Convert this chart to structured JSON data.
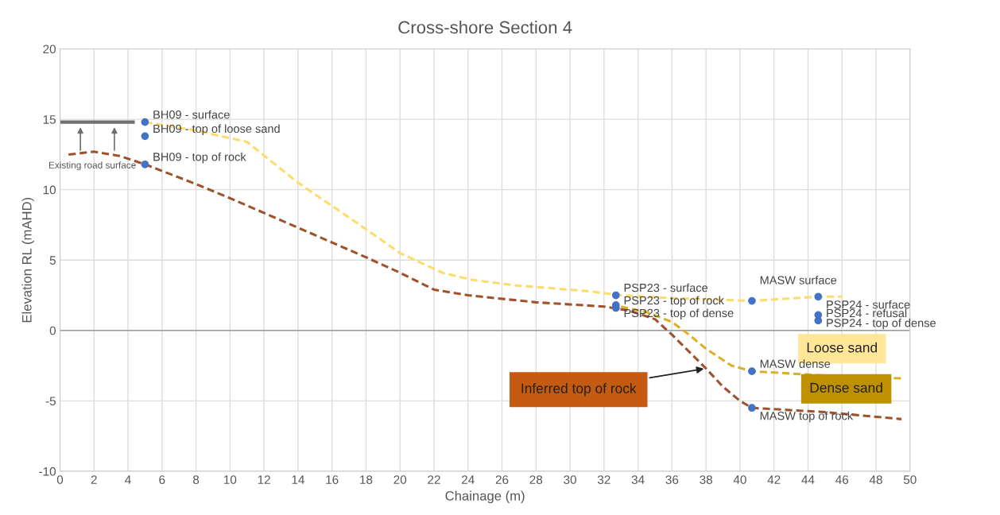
{
  "chart_data": {
    "type": "scatter",
    "title": "Cross-shore Section 4",
    "xlabel": "Chainage (m)",
    "ylabel": "Elevation RL (mAHD)",
    "xlim": [
      0,
      50
    ],
    "xticks": [
      0,
      2,
      4,
      6,
      8,
      10,
      12,
      14,
      16,
      18,
      20,
      22,
      24,
      26,
      28,
      30,
      32,
      34,
      36,
      38,
      40,
      42,
      44,
      46,
      48,
      50
    ],
    "ylim": [
      -10,
      20
    ],
    "yticks": [
      -10,
      -5,
      0,
      5,
      10,
      15,
      20
    ],
    "grid": true,
    "legend": false,
    "marker": "circle",
    "series": [
      {
        "type": "line",
        "color": "#fddc6e",
        "line_style": "dashed",
        "marker": "none",
        "x": [
          5,
          8,
          11,
          14,
          17.4,
          20,
          22.5,
          24.2,
          26.8,
          31,
          33,
          36,
          40.7,
          44.6,
          46
        ],
        "values": [
          14.8,
          14.2,
          13.4,
          10.5,
          7.7,
          5.5,
          4.1,
          3.6,
          3.2,
          2.8,
          2.5,
          2.3,
          2.1,
          2.4,
          2.4
        ]
      },
      {
        "type": "line",
        "color": "#d9b02a",
        "line_style": "dashed",
        "marker": "none",
        "x": [
          33,
          34.5,
          36,
          37,
          38,
          39.5,
          40.7,
          45,
          49.5
        ],
        "values": [
          1.7,
          1.3,
          0.6,
          -0.3,
          -1.3,
          -2.5,
          -2.9,
          -3.2,
          -3.4
        ]
      },
      {
        "type": "line",
        "color": "#a0522d",
        "line_style": "dashed",
        "marker": "none",
        "x": [
          0.5,
          2,
          3.5,
          5,
          8,
          10,
          14,
          18,
          20,
          22,
          24,
          28,
          32,
          33.5,
          35,
          36,
          37,
          38,
          39,
          40,
          40.7,
          45,
          49.5
        ],
        "values": [
          12.5,
          12.7,
          12.4,
          11.8,
          10.4,
          9.4,
          7.3,
          5.2,
          4.1,
          2.9,
          2.5,
          2.0,
          1.7,
          1.4,
          0.8,
          -0.3,
          -1.5,
          -2.7,
          -4.0,
          -5.0,
          -5.5,
          -5.8,
          -6.3
        ]
      },
      {
        "type": "line",
        "color": "#707070",
        "line_style": "solid",
        "marker": "none",
        "x": [
          0,
          4.3
        ],
        "values": [
          14.8,
          14.8
        ]
      },
      {
        "name": "BH09 - surface",
        "color": "#4472c4",
        "x": [
          5
        ],
        "values": [
          14.8
        ]
      },
      {
        "name": "BH09 - top of loose sand",
        "color": "#4472c4",
        "x": [
          5
        ],
        "values": [
          13.8
        ]
      },
      {
        "name": "BH09 - top of rock",
        "color": "#4472c4",
        "x": [
          5
        ],
        "values": [
          11.8
        ]
      },
      {
        "name": "PSP23 - surface",
        "color": "#4472c4",
        "x": [
          32.7
        ],
        "values": [
          2.5
        ]
      },
      {
        "name": "PSP23 - top of dense",
        "color": "#4472c4",
        "x": [
          32.7
        ],
        "values": [
          1.8
        ]
      },
      {
        "name": "PSP23 - top of rock",
        "color": "#4472c4",
        "x": [
          32.7
        ],
        "values": [
          1.6
        ]
      },
      {
        "name": "MASW surface",
        "color": "#4472c4",
        "x": [
          40.7
        ],
        "values": [
          2.1
        ]
      },
      {
        "name": "MASW dense",
        "color": "#4472c4",
        "x": [
          40.7
        ],
        "values": [
          -2.9
        ]
      },
      {
        "name": "MASW top of rock",
        "color": "#4472c4",
        "x": [
          40.7
        ],
        "values": [
          -5.5
        ]
      },
      {
        "name": "PSP24 - surface",
        "color": "#4472c4",
        "x": [
          44.6
        ],
        "values": [
          2.4
        ]
      },
      {
        "name": "PSP24 - top of dense",
        "color": "#4472c4",
        "x": [
          44.6
        ],
        "values": [
          1.1
        ]
      },
      {
        "name": "PSP24 - refusal",
        "color": "#4472c4",
        "x": [
          44.6
        ],
        "values": [
          0.7
        ]
      }
    ],
    "annotations": [
      "Existing road surface",
      "Loose sand",
      "Dense sand",
      {
        "text": "Inferred top of rock",
        "x": 38,
        "y": -2.7
      }
    ]
  }
}
